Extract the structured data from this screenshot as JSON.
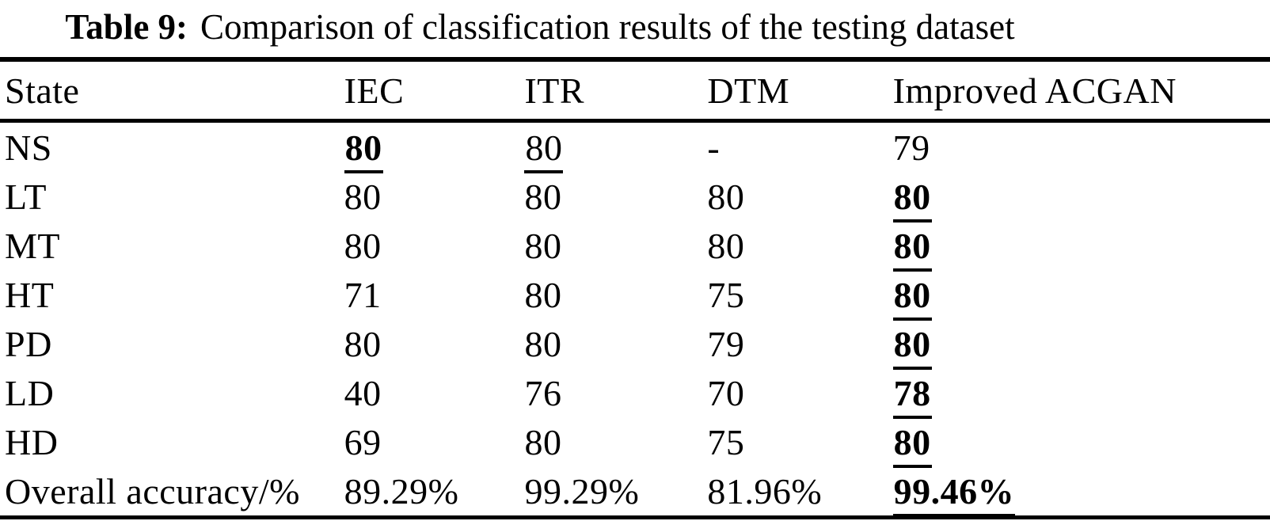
{
  "caption": {
    "label": "Table 9:",
    "text": "Comparison of classification results of the testing dataset"
  },
  "table": {
    "columns": [
      "State",
      "IEC",
      "ITR",
      "DTM",
      "Improved ACGAN"
    ],
    "rows": [
      {
        "state": "NS",
        "cells": [
          {
            "v": "80",
            "b": true,
            "u": true
          },
          {
            "v": "80",
            "b": false,
            "u": true
          },
          {
            "v": "-",
            "b": false,
            "u": false
          },
          {
            "v": "79",
            "b": false,
            "u": false
          }
        ]
      },
      {
        "state": "LT",
        "cells": [
          {
            "v": "80",
            "b": false,
            "u": false
          },
          {
            "v": "80",
            "b": false,
            "u": false
          },
          {
            "v": "80",
            "b": false,
            "u": false
          },
          {
            "v": "80",
            "b": true,
            "u": true
          }
        ]
      },
      {
        "state": "MT",
        "cells": [
          {
            "v": "80",
            "b": false,
            "u": false
          },
          {
            "v": "80",
            "b": false,
            "u": false
          },
          {
            "v": "80",
            "b": false,
            "u": false
          },
          {
            "v": "80",
            "b": true,
            "u": true
          }
        ]
      },
      {
        "state": "HT",
        "cells": [
          {
            "v": "71",
            "b": false,
            "u": false
          },
          {
            "v": "80",
            "b": false,
            "u": false
          },
          {
            "v": "75",
            "b": false,
            "u": false
          },
          {
            "v": "80",
            "b": true,
            "u": true
          }
        ]
      },
      {
        "state": "PD",
        "cells": [
          {
            "v": "80",
            "b": false,
            "u": false
          },
          {
            "v": "80",
            "b": false,
            "u": false
          },
          {
            "v": "79",
            "b": false,
            "u": false
          },
          {
            "v": "80",
            "b": true,
            "u": true
          }
        ]
      },
      {
        "state": "LD",
        "cells": [
          {
            "v": "40",
            "b": false,
            "u": false
          },
          {
            "v": "76",
            "b": false,
            "u": false
          },
          {
            "v": "70",
            "b": false,
            "u": false
          },
          {
            "v": "78",
            "b": true,
            "u": true
          }
        ]
      },
      {
        "state": "HD",
        "cells": [
          {
            "v": "69",
            "b": false,
            "u": false
          },
          {
            "v": "80",
            "b": false,
            "u": false
          },
          {
            "v": "75",
            "b": false,
            "u": false
          },
          {
            "v": "80",
            "b": true,
            "u": true
          }
        ]
      },
      {
        "state": "Overall accuracy/%",
        "cells": [
          {
            "v": "89.29%",
            "b": false,
            "u": false
          },
          {
            "v": "99.29%",
            "b": false,
            "u": false
          },
          {
            "v": "81.96%",
            "b": false,
            "u": false
          },
          {
            "v": "99.46%",
            "b": true,
            "u": true
          }
        ]
      }
    ]
  }
}
